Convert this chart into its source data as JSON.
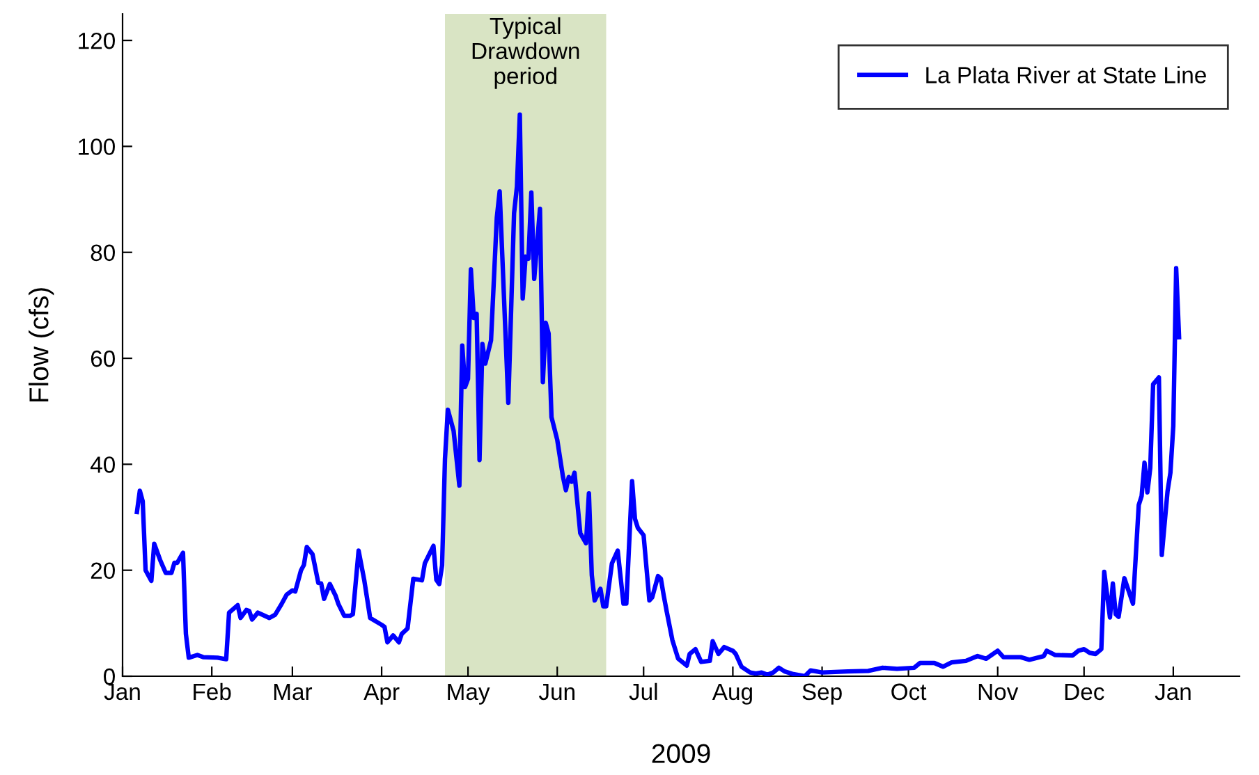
{
  "chart_data": {
    "type": "line",
    "xlabel": "2009",
    "ylabel": "Flow (cfs)",
    "x": [
      "2009-01-06",
      "2009-01-07",
      "2009-01-08",
      "2009-01-09",
      "2009-01-11",
      "2009-01-12",
      "2009-01-14",
      "2009-01-16",
      "2009-01-18",
      "2009-01-19",
      "2009-01-20",
      "2009-01-22",
      "2009-01-23",
      "2009-01-24",
      "2009-01-27",
      "2009-01-29",
      "2009-02-03",
      "2009-02-06",
      "2009-02-07",
      "2009-02-10",
      "2009-02-11",
      "2009-02-13",
      "2009-02-14",
      "2009-02-15",
      "2009-02-17",
      "2009-02-21",
      "2009-02-23",
      "2009-02-25",
      "2009-02-27",
      "2009-03-01",
      "2009-03-02",
      "2009-03-04",
      "2009-03-05",
      "2009-03-06",
      "2009-03-08",
      "2009-03-10",
      "2009-03-11",
      "2009-03-12",
      "2009-03-14",
      "2009-03-16",
      "2009-03-17",
      "2009-03-19",
      "2009-03-21",
      "2009-03-22",
      "2009-03-24",
      "2009-03-26",
      "2009-03-28",
      "2009-04-01",
      "2009-04-02",
      "2009-04-03",
      "2009-04-05",
      "2009-04-07",
      "2009-04-08",
      "2009-04-10",
      "2009-04-12",
      "2009-04-15",
      "2009-04-16",
      "2009-04-19",
      "2009-04-20",
      "2009-04-21",
      "2009-04-22",
      "2009-04-23",
      "2009-04-24",
      "2009-04-26",
      "2009-04-28",
      "2009-04-29",
      "2009-04-30",
      "2009-05-01",
      "2009-05-02",
      "2009-05-03",
      "2009-05-04",
      "2009-05-05",
      "2009-05-06",
      "2009-05-07",
      "2009-05-09",
      "2009-05-11",
      "2009-05-12",
      "2009-05-15",
      "2009-05-17",
      "2009-05-18",
      "2009-05-19",
      "2009-05-20",
      "2009-05-21",
      "2009-05-22",
      "2009-05-23",
      "2009-05-24",
      "2009-05-26",
      "2009-05-27",
      "2009-05-28",
      "2009-05-29",
      "2009-05-30",
      "2009-06-01",
      "2009-06-03",
      "2009-06-04",
      "2009-06-05",
      "2009-06-06",
      "2009-06-07",
      "2009-06-09",
      "2009-06-11",
      "2009-06-12",
      "2009-06-13",
      "2009-06-14",
      "2009-06-16",
      "2009-06-17",
      "2009-06-18",
      "2009-06-20",
      "2009-06-22",
      "2009-06-24",
      "2009-06-25",
      "2009-06-27",
      "2009-06-28",
      "2009-06-29",
      "2009-07-01",
      "2009-07-03",
      "2009-07-04",
      "2009-07-06",
      "2009-07-07",
      "2009-07-08",
      "2009-07-09",
      "2009-07-11",
      "2009-07-13",
      "2009-07-16",
      "2009-07-17",
      "2009-07-19",
      "2009-07-21",
      "2009-07-24",
      "2009-07-25",
      "2009-07-27",
      "2009-07-29",
      "2009-08-01",
      "2009-08-02",
      "2009-08-04",
      "2009-08-07",
      "2009-08-09",
      "2009-08-11",
      "2009-08-13",
      "2009-08-15",
      "2009-08-17",
      "2009-08-19",
      "2009-08-22",
      "2009-08-26",
      "2009-08-28",
      "2009-09-01",
      "2009-09-10",
      "2009-09-17",
      "2009-09-22",
      "2009-09-27",
      "2009-10-03",
      "2009-10-05",
      "2009-10-10",
      "2009-10-13",
      "2009-10-16",
      "2009-10-21",
      "2009-10-25",
      "2009-10-28",
      "2009-11-01",
      "2009-11-03",
      "2009-11-09",
      "2009-11-12",
      "2009-11-17",
      "2009-11-18",
      "2009-11-21",
      "2009-11-27",
      "2009-11-29",
      "2009-12-01",
      "2009-12-03",
      "2009-12-05",
      "2009-12-07",
      "2009-12-08",
      "2009-12-10",
      "2009-12-11",
      "2009-12-12",
      "2009-12-13",
      "2009-12-15",
      "2009-12-18",
      "2009-12-20",
      "2009-12-21",
      "2009-12-22",
      "2009-12-23",
      "2009-12-24",
      "2009-12-25",
      "2009-12-27",
      "2009-12-28",
      "2009-12-30",
      "2009-12-31",
      "2010-01-01",
      "2010-01-02",
      "2010-01-03"
    ],
    "series": [
      {
        "name": "La Plata River at State Line",
        "color": "#0000ff",
        "values": [
          31,
          35,
          33,
          20,
          18,
          25,
          22,
          19.5,
          19.5,
          21.4,
          21.4,
          23.3,
          8,
          3.5,
          4,
          3.6,
          3.5,
          3.2,
          12,
          13.4,
          11,
          12.5,
          12.3,
          10.7,
          12,
          11,
          11.6,
          13.4,
          15.4,
          16.2,
          16,
          20,
          21,
          24.4,
          23,
          17.6,
          17.5,
          14.6,
          17.4,
          15.2,
          13.6,
          11.4,
          11.4,
          11.7,
          23.7,
          18,
          11,
          9.7,
          9.3,
          6.4,
          7.7,
          6.4,
          8,
          9,
          18.4,
          18.1,
          21.3,
          24.6,
          18.2,
          17.4,
          20.9,
          41,
          50.3,
          46.3,
          36,
          62.4,
          54.6,
          56.1,
          76.8,
          67.6,
          68.4,
          40.8,
          62.7,
          59,
          63.4,
          86.5,
          91.5,
          51.6,
          87.4,
          92.4,
          106,
          71.3,
          79.2,
          78.8,
          91.3,
          75,
          88.2,
          55.5,
          66.7,
          64.7,
          48.9,
          44.6,
          37.6,
          35.1,
          37.6,
          36.7,
          38.4,
          27,
          25.1,
          34.5,
          19.1,
          14.3,
          16.5,
          13.2,
          13.2,
          21.3,
          23.7,
          13.7,
          13.7,
          36.8,
          29.7,
          28,
          26.6,
          14.3,
          14.9,
          18.9,
          18.4,
          15.2,
          12.3,
          6.8,
          3.3,
          2,
          4.2,
          5.1,
          2.7,
          2.9,
          6.6,
          4.2,
          5.5,
          4.8,
          4.2,
          1.8,
          0.7,
          0.5,
          0.7,
          0.3,
          0.7,
          1.6,
          0.9,
          0.4,
          0,
          1.1,
          0.7,
          0.9,
          1,
          1.6,
          1.4,
          1.6,
          2.5,
          2.5,
          1.8,
          2.6,
          2.9,
          3.8,
          3.3,
          4.8,
          3.6,
          3.6,
          3.1,
          3.8,
          4.8,
          4,
          3.9,
          4.8,
          5.1,
          4.4,
          4.2,
          5.1,
          19.7,
          11.1,
          17.5,
          11.7,
          11.2,
          18.5,
          13.7,
          32.3,
          34,
          40.3,
          34.7,
          39.3,
          55.1,
          56.4,
          22.9,
          34.9,
          38.4,
          47.2,
          77,
          64
        ]
      }
    ],
    "xlim": [
      "2009-01-01",
      "2010-01-24"
    ],
    "xticks": [
      {
        "value": "2009-01-01",
        "label": "Jan"
      },
      {
        "value": "2009-02-01",
        "label": "Feb"
      },
      {
        "value": "2009-03-01",
        "label": "Mar"
      },
      {
        "value": "2009-04-01",
        "label": "Apr"
      },
      {
        "value": "2009-05-01",
        "label": "May"
      },
      {
        "value": "2009-06-01",
        "label": "Jun"
      },
      {
        "value": "2009-07-01",
        "label": "Jul"
      },
      {
        "value": "2009-08-01",
        "label": "Aug"
      },
      {
        "value": "2009-09-01",
        "label": "Sep"
      },
      {
        "value": "2009-10-01",
        "label": "Oct"
      },
      {
        "value": "2009-11-01",
        "label": "Nov"
      },
      {
        "value": "2009-12-01",
        "label": "Dec"
      },
      {
        "value": "2010-01-01",
        "label": "Jan"
      }
    ],
    "ylim": [
      0,
      125
    ],
    "yticks": [
      0,
      20,
      40,
      60,
      80,
      100,
      120
    ],
    "bands": [
      {
        "axis": "x",
        "from": "2009-04-23",
        "to": "2009-06-18",
        "label": "Typical\nDrawdown\nperiod",
        "color": "#d9e4c4"
      }
    ],
    "legend": "top right",
    "grid": false,
    "marker": "none",
    "line_style": "solid"
  }
}
